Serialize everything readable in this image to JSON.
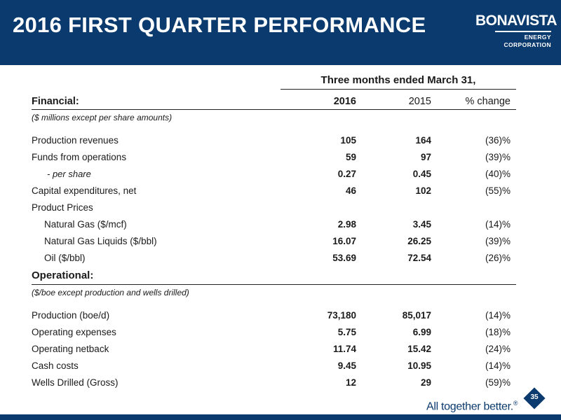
{
  "slide": {
    "title": "2016 FIRST QUARTER PERFORMANCE",
    "logo": {
      "name": "BONAVISTA",
      "sub": "ENERGY CORPORATION"
    },
    "tagline": "All together better.",
    "tagline_mark": "®",
    "page_number": "35"
  },
  "table": {
    "period_header": "Three months ended March 31,",
    "financial": {
      "label": "Financial:",
      "col_2016": "2016",
      "col_2015": "2015",
      "col_change": "% change",
      "note": "($ millions except per share amounts)",
      "rows": [
        {
          "label": "Production revenues",
          "v2016": "105",
          "v2015": "164",
          "change": "(36)%"
        },
        {
          "label": "Funds from operations",
          "v2016": "59",
          "v2015": "97",
          "change": "(39)%"
        },
        {
          "label": "- per share",
          "v2016": "0.27",
          "v2015": "0.45",
          "change": "(40)%"
        },
        {
          "label": "Capital expenditures, net",
          "v2016": "46",
          "v2015": "102",
          "change": "(55)%"
        },
        {
          "label": "Product Prices",
          "v2016": "",
          "v2015": "",
          "change": ""
        },
        {
          "label": "Natural Gas ($/mcf)",
          "v2016": "2.98",
          "v2015": "3.45",
          "change": "(14)%"
        },
        {
          "label": "Natural Gas Liquids ($/bbl)",
          "v2016": "16.07",
          "v2015": "26.25",
          "change": "(39)%"
        },
        {
          "label": "Oil ($/bbl)",
          "v2016": "53.69",
          "v2015": "72.54",
          "change": "(26)%"
        }
      ]
    },
    "operational": {
      "label": "Operational:",
      "note": "($/boe except production and wells drilled)",
      "rows": [
        {
          "label": "Production (boe/d)",
          "v2016": "73,180",
          "v2015": "85,017",
          "change": "(14)%"
        },
        {
          "label": "Operating expenses",
          "v2016": "5.75",
          "v2015": "6.99",
          "change": "(18)%"
        },
        {
          "label": "Operating netback",
          "v2016": "11.74",
          "v2015": "15.42",
          "change": "(24)%"
        },
        {
          "label": "Cash costs",
          "v2016": "9.45",
          "v2015": "10.95",
          "change": "(14)%"
        },
        {
          "label": "Wells Drilled (Gross)",
          "v2016": "12",
          "v2015": "29",
          "change": "(59)%"
        }
      ]
    }
  }
}
